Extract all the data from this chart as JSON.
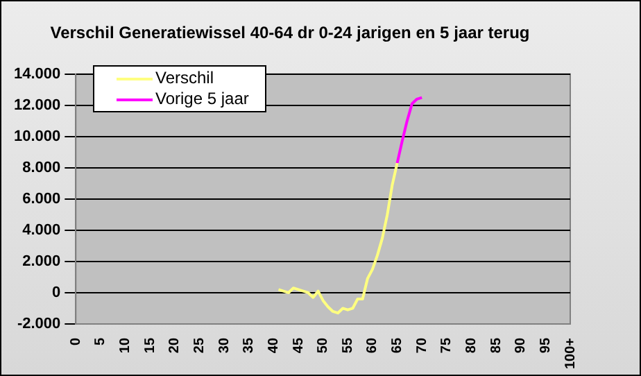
{
  "chart_data": {
    "type": "line",
    "title": "Verschil Generatiewissel 40-64 dr 0-24 jarigen en 5 jaar terug",
    "categories": [
      "0",
      null,
      null,
      null,
      null,
      "5",
      null,
      null,
      null,
      null,
      "10",
      null,
      null,
      null,
      null,
      "15",
      null,
      null,
      null,
      null,
      "20",
      null,
      null,
      null,
      null,
      "25",
      null,
      null,
      null,
      null,
      "30",
      null,
      null,
      null,
      null,
      "35",
      null,
      null,
      null,
      null,
      "40",
      null,
      null,
      null,
      null,
      "45",
      null,
      null,
      null,
      null,
      "50",
      null,
      null,
      null,
      null,
      "55",
      null,
      null,
      null,
      null,
      "60",
      null,
      null,
      null,
      null,
      "65",
      null,
      null,
      null,
      null,
      "70",
      null,
      null,
      null,
      null,
      "75",
      null,
      null,
      null,
      null,
      "80",
      null,
      null,
      null,
      null,
      "85",
      null,
      null,
      null,
      null,
      "90",
      null,
      null,
      null,
      null,
      "95",
      null,
      null,
      null,
      null,
      "100+"
    ],
    "series": [
      {
        "name": "Verschil",
        "color": "#ffff80",
        "values": [
          null,
          null,
          null,
          null,
          null,
          null,
          null,
          null,
          null,
          null,
          null,
          null,
          null,
          null,
          null,
          null,
          null,
          null,
          null,
          null,
          null,
          null,
          null,
          null,
          null,
          null,
          null,
          null,
          null,
          null,
          null,
          null,
          null,
          null,
          null,
          null,
          null,
          null,
          null,
          null,
          null,
          200,
          100,
          0,
          300,
          200,
          100,
          0,
          -300,
          100,
          -500,
          -900,
          -1200,
          -1300,
          -1000,
          -1100,
          -1000,
          -400,
          -400,
          900,
          1500,
          2400,
          3500,
          5000,
          6900,
          8300,
          null,
          null,
          null,
          null,
          null,
          null,
          null,
          null,
          null,
          null,
          null,
          null,
          null,
          null,
          null,
          null,
          null,
          null,
          null,
          null,
          null,
          null,
          null,
          null,
          null,
          null,
          null,
          null,
          null,
          null,
          null,
          null,
          null,
          null,
          null
        ]
      },
      {
        "name": "Vorige 5 jaar",
        "color": "#ff00ff",
        "values": [
          null,
          null,
          null,
          null,
          null,
          null,
          null,
          null,
          null,
          null,
          null,
          null,
          null,
          null,
          null,
          null,
          null,
          null,
          null,
          null,
          null,
          null,
          null,
          null,
          null,
          null,
          null,
          null,
          null,
          null,
          null,
          null,
          null,
          null,
          null,
          null,
          null,
          null,
          null,
          null,
          null,
          null,
          null,
          null,
          null,
          null,
          null,
          null,
          null,
          null,
          null,
          null,
          null,
          null,
          null,
          null,
          null,
          null,
          null,
          null,
          null,
          null,
          null,
          null,
          null,
          8300,
          9700,
          11000,
          12100,
          12400,
          12500,
          null,
          null,
          null,
          null,
          null,
          null,
          null,
          null,
          null,
          null,
          null,
          null,
          null,
          null,
          null,
          null,
          null,
          null,
          null,
          null,
          null,
          null,
          null,
          null,
          null,
          null,
          null,
          null,
          null,
          null
        ]
      }
    ],
    "ylim": [
      -2000,
      14000
    ],
    "yticks": [
      {
        "value": -2000,
        "label": "-2.000"
      },
      {
        "value": 0,
        "label": "0"
      },
      {
        "value": 2000,
        "label": "2.000"
      },
      {
        "value": 4000,
        "label": "4.000"
      },
      {
        "value": 6000,
        "label": "6.000"
      },
      {
        "value": 8000,
        "label": "8.000"
      },
      {
        "value": 10000,
        "label": "10.000"
      },
      {
        "value": 12000,
        "label": "12.000"
      },
      {
        "value": 14000,
        "label": "14.000"
      }
    ],
    "grid": "y",
    "legend": "top left",
    "marker": "none"
  }
}
